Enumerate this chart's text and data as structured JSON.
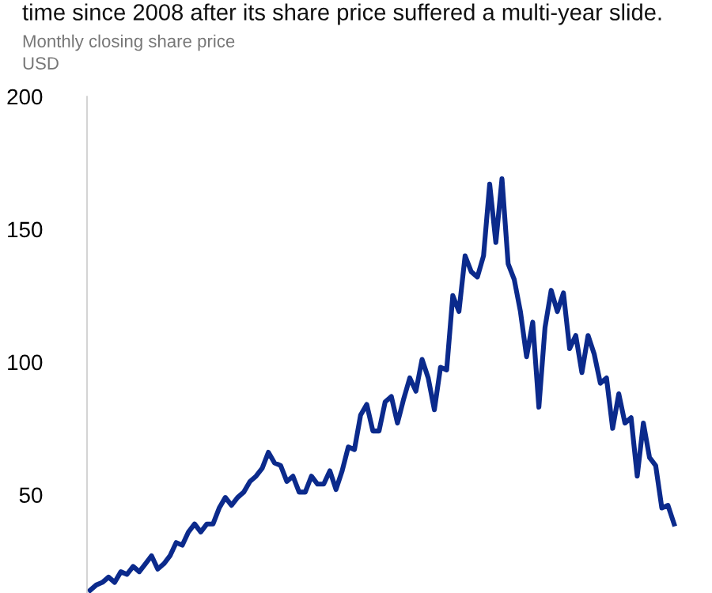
{
  "chart_data": {
    "type": "line",
    "title": "time since 2008 after its share price suffered a multi-year slide.",
    "subtitle": "Monthly closing share price",
    "ylabel": "USD",
    "categories": [
      null,
      null,
      null,
      null,
      null,
      null,
      null,
      null,
      null,
      null,
      null,
      null,
      null,
      null,
      null,
      null,
      null,
      null,
      null,
      null,
      null,
      null,
      null,
      null,
      null,
      null,
      null,
      null,
      null,
      null,
      null,
      null,
      null,
      null,
      null,
      null,
      null,
      null,
      null,
      null,
      null,
      null,
      null,
      null,
      null,
      null,
      null,
      null,
      null,
      null,
      null,
      null,
      null,
      null,
      null,
      null,
      null,
      null,
      null,
      null,
      null,
      null,
      null,
      null,
      null,
      null,
      null,
      null,
      null,
      null,
      null,
      null,
      null,
      null,
      null,
      null,
      null,
      null,
      null,
      null,
      null,
      null,
      null,
      null,
      null,
      null,
      null,
      null,
      null,
      null,
      null,
      null,
      null,
      null,
      null,
      null
    ],
    "series": [
      {
        "color": "#0b2a8c",
        "values": [
          14,
          16,
          17,
          19,
          17,
          21,
          20,
          23,
          21,
          24,
          27,
          22,
          24,
          27,
          32,
          31,
          36,
          39,
          36,
          39,
          39,
          45,
          49,
          46,
          49,
          51,
          55,
          57,
          60,
          66,
          62,
          61,
          55,
          57,
          51,
          51,
          57,
          54,
          54,
          59,
          52,
          59,
          68,
          67,
          80,
          84,
          74,
          74,
          85,
          87,
          77,
          86,
          94,
          89,
          101,
          94,
          82,
          98,
          97,
          125,
          119,
          140,
          134,
          132,
          140,
          167,
          145,
          169,
          137,
          131,
          119,
          102,
          115,
          83,
          113,
          127,
          119,
          126,
          105,
          110,
          96,
          110,
          103,
          92,
          94,
          75,
          88,
          77,
          79,
          57,
          77,
          64,
          61,
          45,
          46,
          39
        ]
      }
    ],
    "ylim": [
      13,
      200
    ],
    "yticks": [
      50,
      100,
      150,
      200
    ],
    "tick_labels": "y",
    "grid": false,
    "marker": "none",
    "line_style": "solid"
  }
}
